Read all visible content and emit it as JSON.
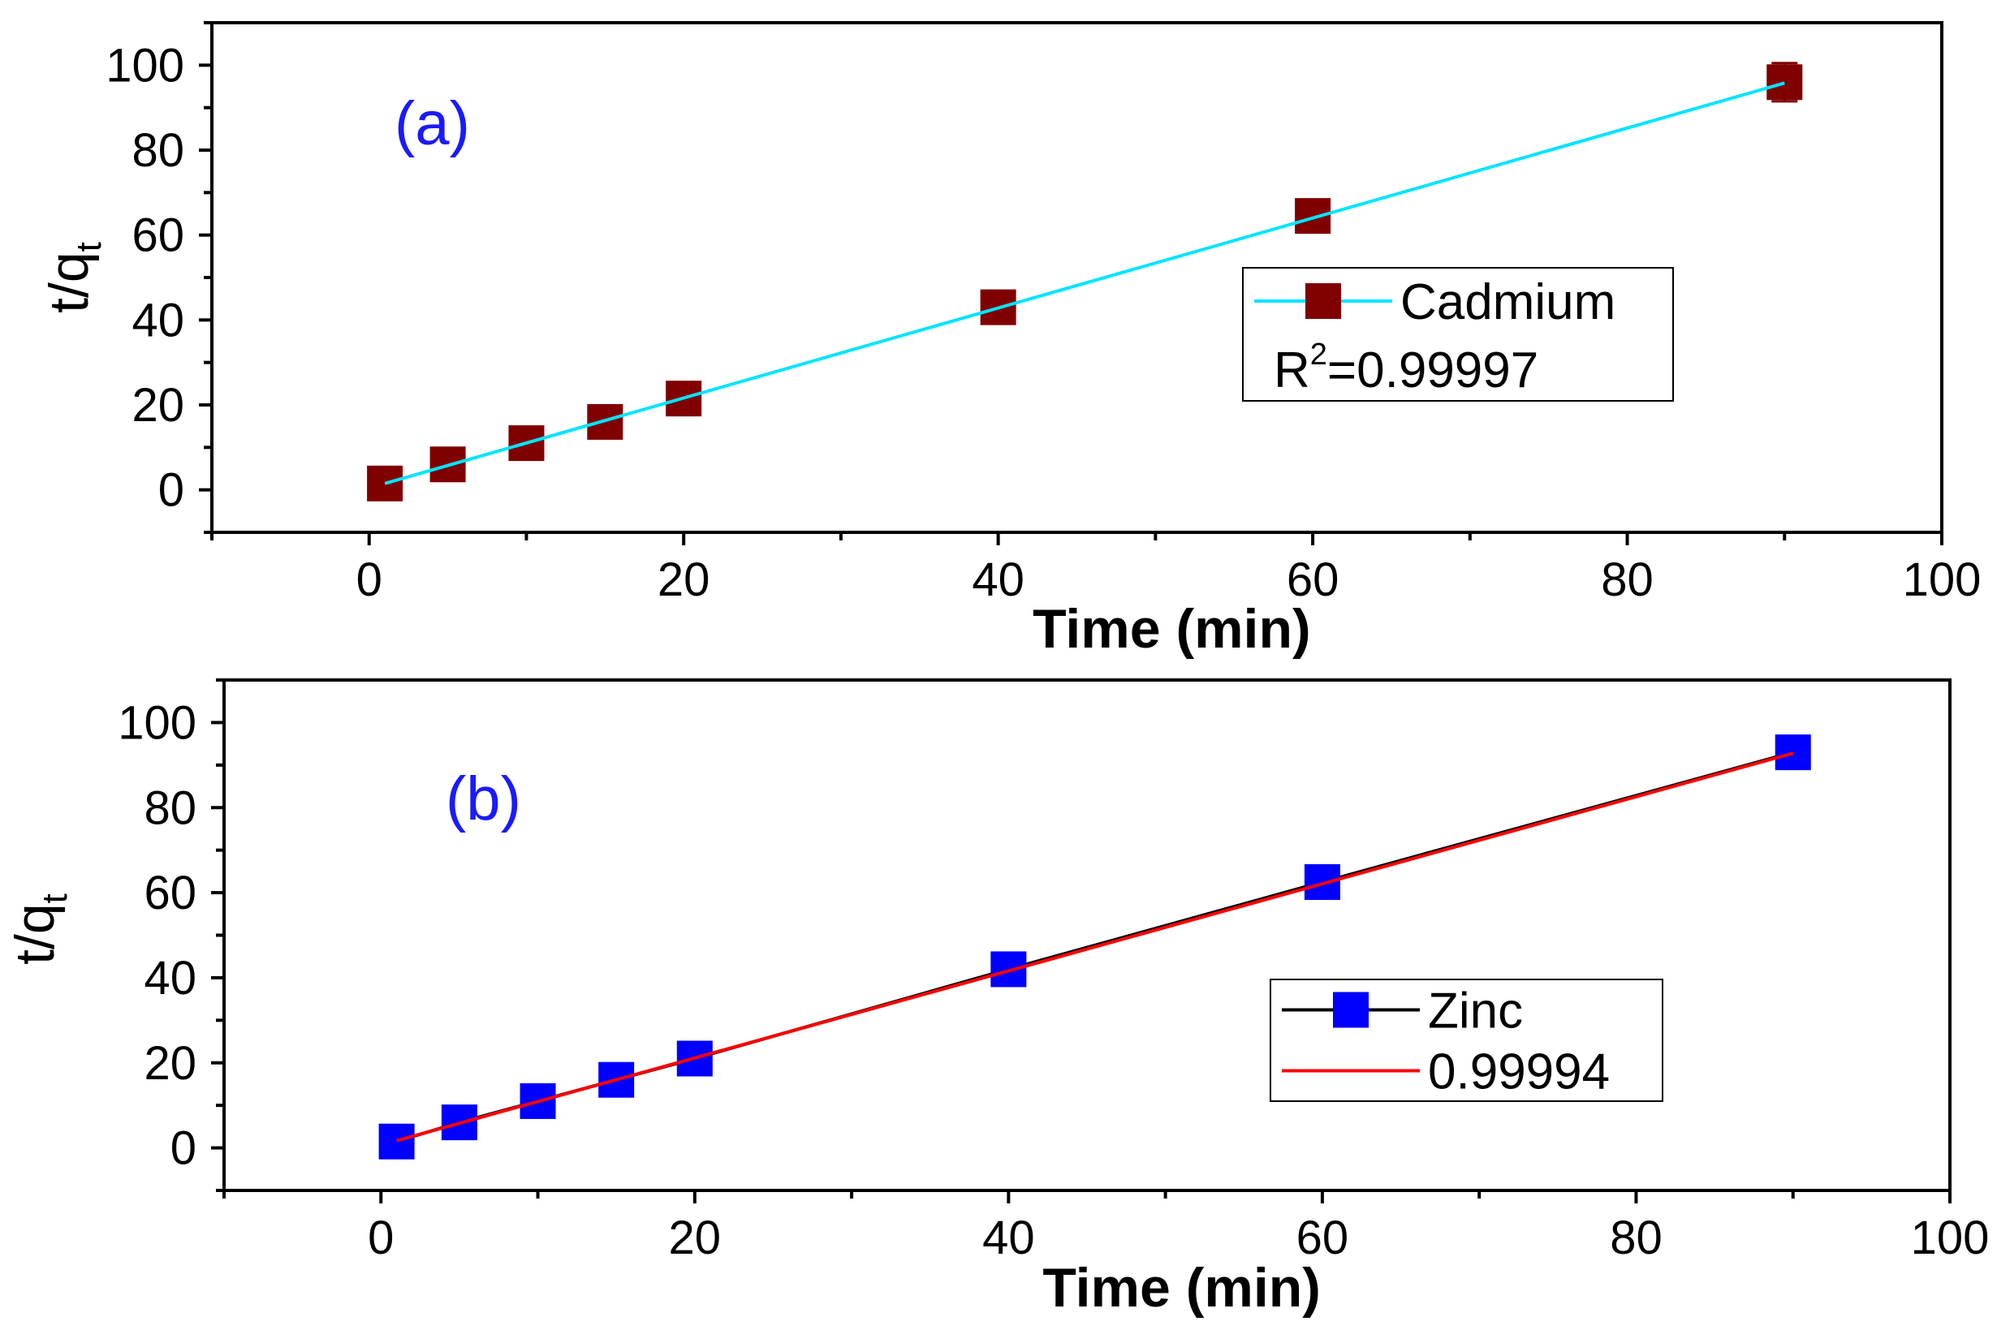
{
  "chart_data": [
    {
      "type": "scatter",
      "panel_label": "(a)",
      "title": "",
      "xlabel": "Time (min)",
      "ylabel": "t/q",
      "ylabel_subscript": "t",
      "xlim": [
        -10,
        100
      ],
      "ylim": [
        -10,
        110
      ],
      "xticks": [
        0,
        20,
        40,
        60,
        80,
        100
      ],
      "yticks": [
        0,
        20,
        40,
        60,
        80,
        100
      ],
      "series": [
        {
          "name": "Cadmium",
          "x": [
            1,
            5,
            10,
            15,
            20,
            40,
            60,
            90
          ],
          "y": [
            1.5,
            6,
            11,
            16,
            21.5,
            43,
            64.5,
            96
          ],
          "error": [
            0,
            0,
            0,
            0,
            0,
            0,
            0,
            4.5
          ],
          "marker_color": "#800000",
          "fit_line_color": "#00e5ff",
          "fit": {
            "x": [
              1,
              90
            ],
            "y": [
              1.5,
              95.8
            ]
          }
        }
      ],
      "legend": {
        "entries": [
          "Cadmium"
        ],
        "r2_prefix": "R",
        "r2_sup": "2",
        "r2_value": "=0.99997",
        "position": "middle-right"
      }
    },
    {
      "type": "scatter",
      "panel_label": "(b)",
      "title": "",
      "xlabel": "Time (min)",
      "ylabel": "t/q",
      "ylabel_subscript": "t",
      "xlim": [
        -10,
        100
      ],
      "ylim": [
        -10,
        110
      ],
      "xticks": [
        0,
        20,
        40,
        60,
        80,
        100
      ],
      "yticks": [
        0,
        20,
        40,
        60,
        80,
        100
      ],
      "series": [
        {
          "name": "Zinc",
          "x": [
            1,
            5,
            10,
            15,
            20,
            40,
            60,
            90
          ],
          "y": [
            1.5,
            6,
            11,
            16,
            21,
            42,
            62.5,
            93
          ],
          "marker_color": "#0000ff",
          "line_color": "#000000",
          "fit_line_color": "#ff0000",
          "fit": {
            "x": [
              1,
              90
            ],
            "y": [
              1.7,
              92.8
            ]
          }
        }
      ],
      "legend": {
        "entries": [
          "Zinc",
          "0.99994"
        ],
        "position": "lower-right"
      }
    }
  ],
  "colors": {
    "panel_label": "#1a1aff",
    "axis": "#000000"
  }
}
